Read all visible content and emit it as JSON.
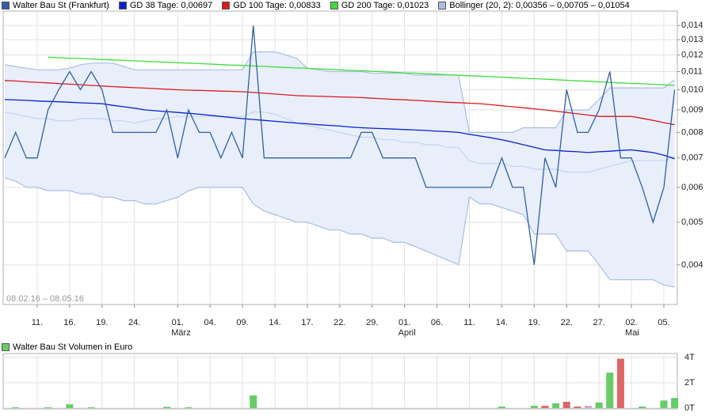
{
  "chart_data": [
    {
      "type": "line",
      "log_scale": true,
      "grid": true,
      "date_range": "08.02.16 – 08.05.16",
      "categories": [
        null,
        null,
        null,
        "11.",
        null,
        null,
        "16.",
        null,
        null,
        "19.",
        null,
        null,
        "24.",
        null,
        null,
        null,
        "01.",
        null,
        null,
        "04.",
        null,
        null,
        "09.",
        null,
        null,
        "14.",
        null,
        null,
        "17.",
        null,
        null,
        "22.",
        null,
        null,
        "29.",
        null,
        null,
        "01.",
        null,
        null,
        "06.",
        null,
        null,
        "11.",
        null,
        null,
        "14.",
        null,
        null,
        "19.",
        null,
        null,
        "22.",
        null,
        null,
        "27.",
        null,
        null,
        "02.",
        null,
        null,
        "05.",
        null
      ],
      "month_labels": [
        null,
        null,
        null,
        null,
        null,
        null,
        null,
        null,
        null,
        null,
        null,
        null,
        null,
        null,
        null,
        null,
        "März",
        null,
        null,
        null,
        null,
        null,
        null,
        null,
        null,
        null,
        null,
        null,
        null,
        null,
        null,
        null,
        null,
        null,
        null,
        null,
        null,
        "April",
        null,
        null,
        null,
        null,
        null,
        null,
        null,
        null,
        null,
        null,
        null,
        null,
        null,
        null,
        null,
        null,
        null,
        null,
        null,
        null,
        "Mai",
        null,
        null,
        null,
        null
      ],
      "ylim": [
        0.00325,
        0.0151
      ],
      "yticks": [
        {
          "value": 0.004,
          "label": "0,004"
        },
        {
          "value": 0.005,
          "label": "0,005"
        },
        {
          "value": 0.006,
          "label": "0,006"
        },
        {
          "value": 0.007,
          "label": "0,007"
        },
        {
          "value": 0.008,
          "label": "0,008"
        },
        {
          "value": 0.009,
          "label": "0,009"
        },
        {
          "value": 0.01,
          "label": "0,010"
        },
        {
          "value": 0.011,
          "label": "0,011"
        },
        {
          "value": 0.012,
          "label": "0,012"
        },
        {
          "value": 0.013,
          "label": "0,013"
        },
        {
          "value": 0.014,
          "label": "0,014"
        }
      ],
      "series": [
        {
          "name": "Walter Bau St (Frankfurt)",
          "color": "#2f5fa5",
          "values": [
            0.007,
            0.008,
            0.007,
            0.007,
            0.009,
            0.01,
            0.011,
            0.01,
            0.011,
            0.01,
            0.008,
            0.008,
            0.008,
            0.008,
            0.008,
            0.009,
            0.007,
            0.009,
            0.008,
            0.008,
            0.007,
            0.008,
            0.007,
            0.014,
            0.007,
            0.007,
            0.007,
            0.007,
            0.007,
            0.007,
            0.007,
            0.007,
            0.007,
            0.008,
            0.008,
            0.007,
            0.007,
            0.007,
            0.007,
            0.006,
            0.006,
            0.006,
            0.006,
            0.006,
            0.006,
            0.006,
            0.007,
            0.006,
            0.006,
            0.004,
            0.007,
            0.006,
            0.01,
            0.008,
            0.008,
            0.009,
            0.011,
            0.007,
            0.007,
            0.006,
            0.005,
            0.006,
            0.01
          ]
        },
        {
          "name": "GD 38 Tage: 0,00697",
          "color": "#0a1fd0",
          "values": [
            0.0095,
            0.00948,
            0.00946,
            0.00943,
            0.00941,
            0.00939,
            0.00937,
            0.00934,
            0.00932,
            0.0093,
            0.00922,
            0.00915,
            0.00908,
            0.009,
            0.00896,
            0.00892,
            0.00888,
            0.00884,
            0.0088,
            0.00875,
            0.0087,
            0.00865,
            0.0086,
            0.00856,
            0.00852,
            0.00848,
            0.00844,
            0.0084,
            0.00837,
            0.00833,
            0.0083,
            0.00827,
            0.00823,
            0.0082,
            0.00818,
            0.00816,
            0.00814,
            0.00812,
            0.0081,
            0.00808,
            0.00805,
            0.00803,
            0.008,
            0.00792,
            0.00785,
            0.00778,
            0.0077,
            0.0076,
            0.0075,
            0.0074,
            0.0073,
            0.00728,
            0.00725,
            0.00723,
            0.0072,
            0.00723,
            0.00725,
            0.00728,
            0.0073,
            0.00725,
            0.0072,
            0.0071,
            0.00697
          ]
        },
        {
          "name": "GD 100 Tage: 0,00833",
          "color": "#dd1a1a",
          "values": [
            0.0105,
            0.01047,
            0.01043,
            0.0104,
            0.01037,
            0.01033,
            0.0103,
            0.01027,
            0.01023,
            0.0102,
            0.01017,
            0.01014,
            0.01011,
            0.01009,
            0.01006,
            0.01003,
            0.01,
            0.00998,
            0.00997,
            0.00995,
            0.00993,
            0.00992,
            0.0099,
            0.00986,
            0.00982,
            0.00978,
            0.00974,
            0.0097,
            0.00968,
            0.00967,
            0.00965,
            0.00963,
            0.00962,
            0.0096,
            0.00957,
            0.00954,
            0.00951,
            0.00949,
            0.00946,
            0.00943,
            0.0094,
            0.00937,
            0.00935,
            0.00932,
            0.0093,
            0.00925,
            0.0092,
            0.00915,
            0.0091,
            0.00905,
            0.009,
            0.00894,
            0.00888,
            0.00882,
            0.00876,
            0.0087,
            0.0087,
            0.0087,
            0.0087,
            0.00861,
            0.00852,
            0.00842,
            0.00833
          ]
        },
        {
          "name": "GD 200 Tage: 0,01023",
          "color": "#3fdc3f",
          "values": [
            null,
            null,
            null,
            null,
            0.01186,
            0.01183,
            0.0118,
            0.01178,
            0.01175,
            0.01172,
            0.01169,
            0.01166,
            0.01164,
            0.01161,
            0.01158,
            0.01155,
            0.01152,
            0.0115,
            0.01147,
            0.01144,
            0.01141,
            0.01138,
            0.01136,
            0.01133,
            0.0113,
            0.01127,
            0.01124,
            0.01121,
            0.01119,
            0.01116,
            0.01113,
            0.0111,
            0.01107,
            0.01105,
            0.01102,
            0.01099,
            0.01096,
            0.01093,
            0.01091,
            0.01088,
            0.01085,
            0.01082,
            0.01079,
            0.01076,
            0.01074,
            0.01071,
            0.01068,
            0.01065,
            0.01062,
            0.0106,
            0.01057,
            0.01054,
            0.01051,
            0.01048,
            0.01046,
            0.01043,
            0.0104,
            0.01037,
            0.01034,
            0.01032,
            0.01029,
            0.01026,
            0.01023
          ]
        },
        {
          "name": "Bollinger (20, 2): 0,00356 – 0,00705 – 0,01054",
          "color": "#a9bde3",
          "fill": "#e8effb",
          "middle_color": "#c3d2ee",
          "upper": [
            0.0114,
            0.0113,
            0.0112,
            0.0111,
            0.0111,
            0.0111,
            0.0112,
            0.0114,
            0.0115,
            0.0115,
            0.0115,
            0.0113,
            0.0111,
            0.0111,
            0.0111,
            0.0111,
            0.0111,
            0.0111,
            0.0111,
            0.0111,
            0.0111,
            0.0111,
            0.0111,
            0.0122,
            0.0122,
            0.0122,
            0.012,
            0.0118,
            0.0112,
            0.0111,
            0.011,
            0.011,
            0.011,
            0.011,
            0.0109,
            0.0109,
            0.0109,
            0.0109,
            0.0108,
            0.0108,
            0.0108,
            0.0108,
            0.0108,
            0.008,
            0.008,
            0.008,
            0.008,
            0.008,
            0.0082,
            0.0082,
            0.0082,
            0.0082,
            0.009,
            0.009,
            0.009,
            0.0095,
            0.0101,
            0.0101,
            0.0101,
            0.0101,
            0.0101,
            0.0101,
            0.01054
          ],
          "middle": [
            0.0089,
            0.0088,
            0.0087,
            0.0086,
            0.0086,
            0.0085,
            0.0085,
            0.0086,
            0.0086,
            0.0086,
            0.0085,
            0.0085,
            0.0084,
            0.0085,
            0.0086,
            0.0086,
            0.0087,
            0.0087,
            0.0087,
            0.0087,
            0.0087,
            0.0087,
            0.0087,
            0.0089,
            0.0089,
            0.0088,
            0.0086,
            0.0084,
            0.0083,
            0.0082,
            0.0081,
            0.008,
            0.0079,
            0.0078,
            0.0078,
            0.0077,
            0.0077,
            0.0076,
            0.0076,
            0.0075,
            0.0075,
            0.0074,
            0.0074,
            0.0069,
            0.0068,
            0.0068,
            0.0068,
            0.0067,
            0.0067,
            0.0066,
            0.0066,
            0.0066,
            0.0065,
            0.0065,
            0.0065,
            0.0066,
            0.0067,
            0.0068,
            0.0069,
            0.0069,
            0.0069,
            0.0069,
            0.00705
          ],
          "lower": [
            0.0063,
            0.0062,
            0.006,
            0.006,
            0.0059,
            0.0059,
            0.0059,
            0.0058,
            0.0058,
            0.0057,
            0.0057,
            0.0056,
            0.0056,
            0.0055,
            0.0055,
            0.0056,
            0.0057,
            0.0059,
            0.006,
            0.006,
            0.006,
            0.006,
            0.006,
            0.0055,
            0.0053,
            0.0052,
            0.0051,
            0.005,
            0.005,
            0.0049,
            0.0048,
            0.0048,
            0.0047,
            0.0047,
            0.0046,
            0.0046,
            0.0045,
            0.0045,
            0.0044,
            0.0043,
            0.0042,
            0.0041,
            0.004,
            0.0057,
            0.0055,
            0.0055,
            0.0054,
            0.0053,
            0.0052,
            0.0047,
            0.0047,
            0.0047,
            0.0043,
            0.0043,
            0.0043,
            0.004,
            0.0037,
            0.0037,
            0.0037,
            0.0037,
            0.0037,
            0.0036,
            0.00356
          ]
        }
      ]
    },
    {
      "type": "bar",
      "grid": true,
      "name": "Walter Bau St Volumen in Euro",
      "color": "#66cc66",
      "ylim": [
        0,
        4000
      ],
      "yticks": [
        {
          "value": 0,
          "label": "0T"
        },
        {
          "value": 2000,
          "label": "2T"
        },
        {
          "value": 4000,
          "label": "4T"
        }
      ],
      "values": [
        0,
        60,
        0,
        0,
        60,
        0,
        300,
        0,
        60,
        0,
        0,
        0,
        0,
        0,
        0,
        100,
        0,
        60,
        0,
        0,
        0,
        0,
        0,
        1000,
        0,
        0,
        0,
        0,
        0,
        0,
        0,
        0,
        0,
        0,
        0,
        0,
        0,
        0,
        0,
        0,
        0,
        0,
        0,
        0,
        0,
        0,
        120,
        0,
        0,
        180,
        180,
        380,
        500,
        120,
        180,
        440,
        2800,
        3900,
        0,
        120,
        0,
        600,
        800
      ],
      "colors": [
        "#66cc66",
        "#66cc66",
        "#66cc66",
        "#66cc66",
        "#66cc66",
        "#66cc66",
        "#66cc66",
        "#66cc66",
        "#66cc66",
        "#66cc66",
        "#66cc66",
        "#66cc66",
        "#66cc66",
        "#66cc66",
        "#66cc66",
        "#66cc66",
        "#66cc66",
        "#66cc66",
        "#66cc66",
        "#66cc66",
        "#66cc66",
        "#66cc66",
        "#66cc66",
        "#66cc66",
        "#66cc66",
        "#66cc66",
        "#66cc66",
        "#66cc66",
        "#66cc66",
        "#66cc66",
        "#66cc66",
        "#66cc66",
        "#66cc66",
        "#66cc66",
        "#66cc66",
        "#66cc66",
        "#66cc66",
        "#66cc66",
        "#66cc66",
        "#66cc66",
        "#66cc66",
        "#66cc66",
        "#66cc66",
        "#66cc66",
        "#66cc66",
        "#66cc66",
        "#66cc66",
        "#66cc66",
        "#66cc66",
        "#66cc66",
        "#dd6666",
        "#66cc66",
        "#dd6666",
        "#dd6666",
        "#ccaacc",
        "#66cc66",
        "#66cc66",
        "#dd6666",
        "#66cc66",
        "#66cc66",
        "#66cc66",
        "#66cc66",
        "#66cc66"
      ]
    }
  ]
}
